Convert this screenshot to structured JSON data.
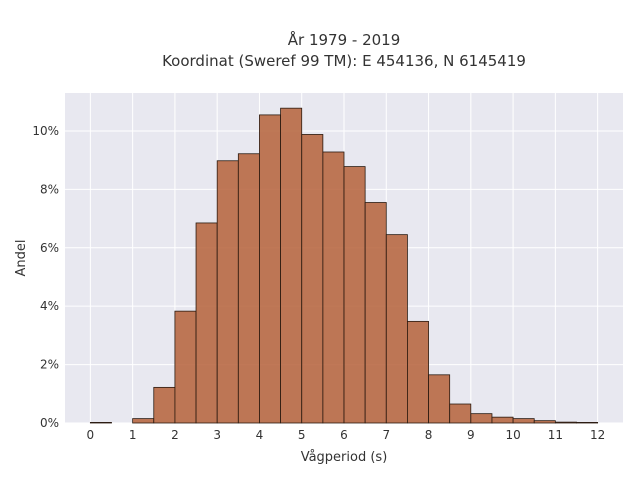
{
  "chart_data": {
    "type": "bar",
    "title_line1": "År 1979 - 2019",
    "title_line2": "Koordinat (Sweref 99 TM): E 454136, N 6145419",
    "xlabel": "Vågperiod (s)",
    "ylabel": "Andel",
    "xlim": [
      -0.6,
      12.6
    ],
    "ylim": [
      0,
      11.3
    ],
    "x_ticks": [
      0,
      1,
      2,
      3,
      4,
      5,
      6,
      7,
      8,
      9,
      10,
      11,
      12
    ],
    "y_ticks": [
      0,
      2,
      4,
      6,
      8,
      10
    ],
    "y_tick_labels": [
      "0%",
      "2%",
      "4%",
      "6%",
      "8%",
      "10%"
    ],
    "bin_width": 0.5,
    "bins": [
      {
        "start": 0.0,
        "value": 0.02
      },
      {
        "start": 0.5,
        "value": 0.0
      },
      {
        "start": 1.0,
        "value": 0.15
      },
      {
        "start": 1.5,
        "value": 1.22
      },
      {
        "start": 2.0,
        "value": 3.83
      },
      {
        "start": 2.5,
        "value": 6.85
      },
      {
        "start": 3.0,
        "value": 8.98
      },
      {
        "start": 3.5,
        "value": 9.22
      },
      {
        "start": 4.0,
        "value": 10.55
      },
      {
        "start": 4.5,
        "value": 10.78
      },
      {
        "start": 5.0,
        "value": 9.88
      },
      {
        "start": 5.5,
        "value": 9.28
      },
      {
        "start": 6.0,
        "value": 8.78
      },
      {
        "start": 6.5,
        "value": 7.55
      },
      {
        "start": 7.0,
        "value": 6.45
      },
      {
        "start": 7.5,
        "value": 3.48
      },
      {
        "start": 8.0,
        "value": 1.65
      },
      {
        "start": 8.5,
        "value": 0.65
      },
      {
        "start": 9.0,
        "value": 0.32
      },
      {
        "start": 9.5,
        "value": 0.2
      },
      {
        "start": 10.0,
        "value": 0.15
      },
      {
        "start": 10.5,
        "value": 0.08
      },
      {
        "start": 11.0,
        "value": 0.03
      },
      {
        "start": 11.5,
        "value": 0.02
      }
    ],
    "grid": true,
    "legend": "none"
  },
  "colors": {
    "bar_fill": "#b5623a",
    "bar_edge": "#2a1a10",
    "plot_background": "#e8e8f0",
    "grid": "#ffffff"
  }
}
